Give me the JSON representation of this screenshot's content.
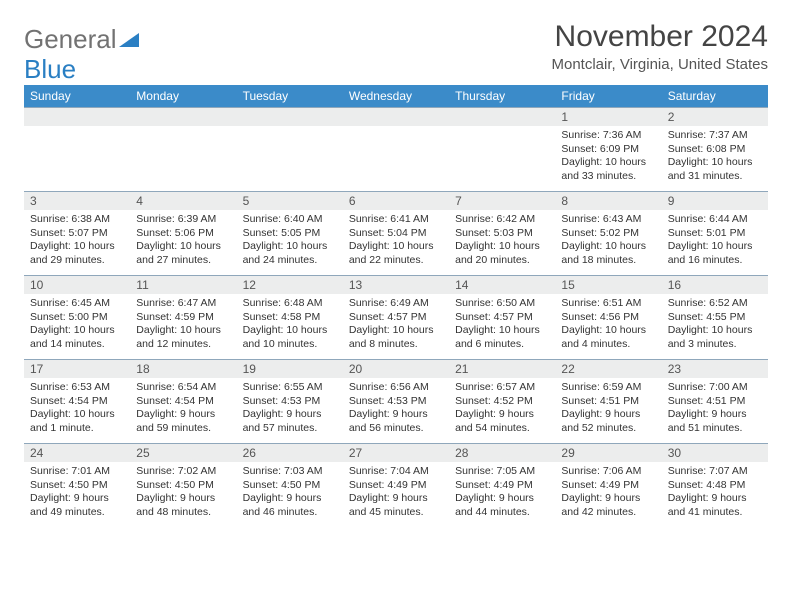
{
  "brand": {
    "general": "General",
    "blue": "Blue"
  },
  "title": "November 2024",
  "location": "Montclair, Virginia, United States",
  "colors": {
    "header_bg": "#3b8bc9",
    "daynum_bg": "#eceded",
    "border": "#8fa7bb",
    "text": "#333333",
    "brand_gray": "#727272",
    "brand_blue": "#2a7fc3"
  },
  "dayHeaders": [
    "Sunday",
    "Monday",
    "Tuesday",
    "Wednesday",
    "Thursday",
    "Friday",
    "Saturday"
  ],
  "weeks": [
    [
      null,
      null,
      null,
      null,
      null,
      {
        "n": "1",
        "sr": "7:36 AM",
        "ss": "6:09 PM",
        "dl": "10 hours and 33 minutes."
      },
      {
        "n": "2",
        "sr": "7:37 AM",
        "ss": "6:08 PM",
        "dl": "10 hours and 31 minutes."
      }
    ],
    [
      {
        "n": "3",
        "sr": "6:38 AM",
        "ss": "5:07 PM",
        "dl": "10 hours and 29 minutes."
      },
      {
        "n": "4",
        "sr": "6:39 AM",
        "ss": "5:06 PM",
        "dl": "10 hours and 27 minutes."
      },
      {
        "n": "5",
        "sr": "6:40 AM",
        "ss": "5:05 PM",
        "dl": "10 hours and 24 minutes."
      },
      {
        "n": "6",
        "sr": "6:41 AM",
        "ss": "5:04 PM",
        "dl": "10 hours and 22 minutes."
      },
      {
        "n": "7",
        "sr": "6:42 AM",
        "ss": "5:03 PM",
        "dl": "10 hours and 20 minutes."
      },
      {
        "n": "8",
        "sr": "6:43 AM",
        "ss": "5:02 PM",
        "dl": "10 hours and 18 minutes."
      },
      {
        "n": "9",
        "sr": "6:44 AM",
        "ss": "5:01 PM",
        "dl": "10 hours and 16 minutes."
      }
    ],
    [
      {
        "n": "10",
        "sr": "6:45 AM",
        "ss": "5:00 PM",
        "dl": "10 hours and 14 minutes."
      },
      {
        "n": "11",
        "sr": "6:47 AM",
        "ss": "4:59 PM",
        "dl": "10 hours and 12 minutes."
      },
      {
        "n": "12",
        "sr": "6:48 AM",
        "ss": "4:58 PM",
        "dl": "10 hours and 10 minutes."
      },
      {
        "n": "13",
        "sr": "6:49 AM",
        "ss": "4:57 PM",
        "dl": "10 hours and 8 minutes."
      },
      {
        "n": "14",
        "sr": "6:50 AM",
        "ss": "4:57 PM",
        "dl": "10 hours and 6 minutes."
      },
      {
        "n": "15",
        "sr": "6:51 AM",
        "ss": "4:56 PM",
        "dl": "10 hours and 4 minutes."
      },
      {
        "n": "16",
        "sr": "6:52 AM",
        "ss": "4:55 PM",
        "dl": "10 hours and 3 minutes."
      }
    ],
    [
      {
        "n": "17",
        "sr": "6:53 AM",
        "ss": "4:54 PM",
        "dl": "10 hours and 1 minute."
      },
      {
        "n": "18",
        "sr": "6:54 AM",
        "ss": "4:54 PM",
        "dl": "9 hours and 59 minutes."
      },
      {
        "n": "19",
        "sr": "6:55 AM",
        "ss": "4:53 PM",
        "dl": "9 hours and 57 minutes."
      },
      {
        "n": "20",
        "sr": "6:56 AM",
        "ss": "4:53 PM",
        "dl": "9 hours and 56 minutes."
      },
      {
        "n": "21",
        "sr": "6:57 AM",
        "ss": "4:52 PM",
        "dl": "9 hours and 54 minutes."
      },
      {
        "n": "22",
        "sr": "6:59 AM",
        "ss": "4:51 PM",
        "dl": "9 hours and 52 minutes."
      },
      {
        "n": "23",
        "sr": "7:00 AM",
        "ss": "4:51 PM",
        "dl": "9 hours and 51 minutes."
      }
    ],
    [
      {
        "n": "24",
        "sr": "7:01 AM",
        "ss": "4:50 PM",
        "dl": "9 hours and 49 minutes."
      },
      {
        "n": "25",
        "sr": "7:02 AM",
        "ss": "4:50 PM",
        "dl": "9 hours and 48 minutes."
      },
      {
        "n": "26",
        "sr": "7:03 AM",
        "ss": "4:50 PM",
        "dl": "9 hours and 46 minutes."
      },
      {
        "n": "27",
        "sr": "7:04 AM",
        "ss": "4:49 PM",
        "dl": "9 hours and 45 minutes."
      },
      {
        "n": "28",
        "sr": "7:05 AM",
        "ss": "4:49 PM",
        "dl": "9 hours and 44 minutes."
      },
      {
        "n": "29",
        "sr": "7:06 AM",
        "ss": "4:49 PM",
        "dl": "9 hours and 42 minutes."
      },
      {
        "n": "30",
        "sr": "7:07 AM",
        "ss": "4:48 PM",
        "dl": "9 hours and 41 minutes."
      }
    ]
  ],
  "labels": {
    "sunrise": "Sunrise:",
    "sunset": "Sunset:",
    "daylight": "Daylight:"
  }
}
